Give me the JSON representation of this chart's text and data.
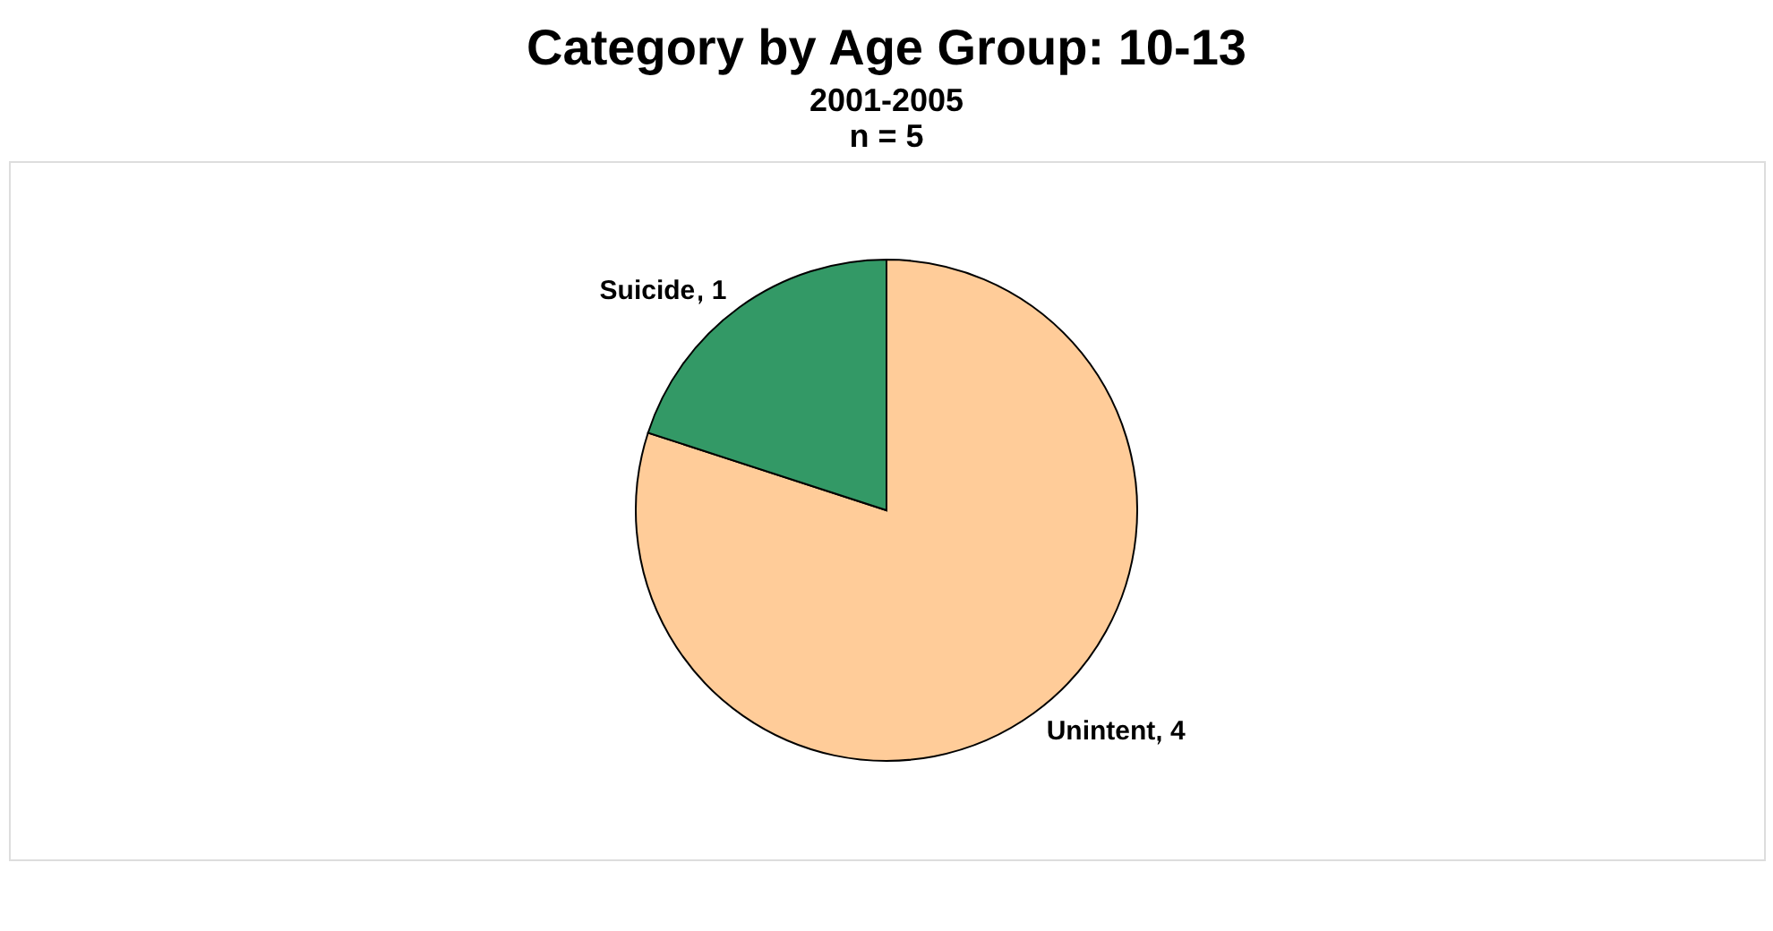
{
  "chart_data": {
    "type": "pie",
    "title": "Category by Age Group: 10-13",
    "subtitle": "2001-2005\nn = 5",
    "categories": [
      "Unintent",
      "Suicide"
    ],
    "values": [
      4,
      1
    ],
    "data_labels": true,
    "colors": [
      "#ffcc99",
      "#339966"
    ],
    "legend": false
  }
}
